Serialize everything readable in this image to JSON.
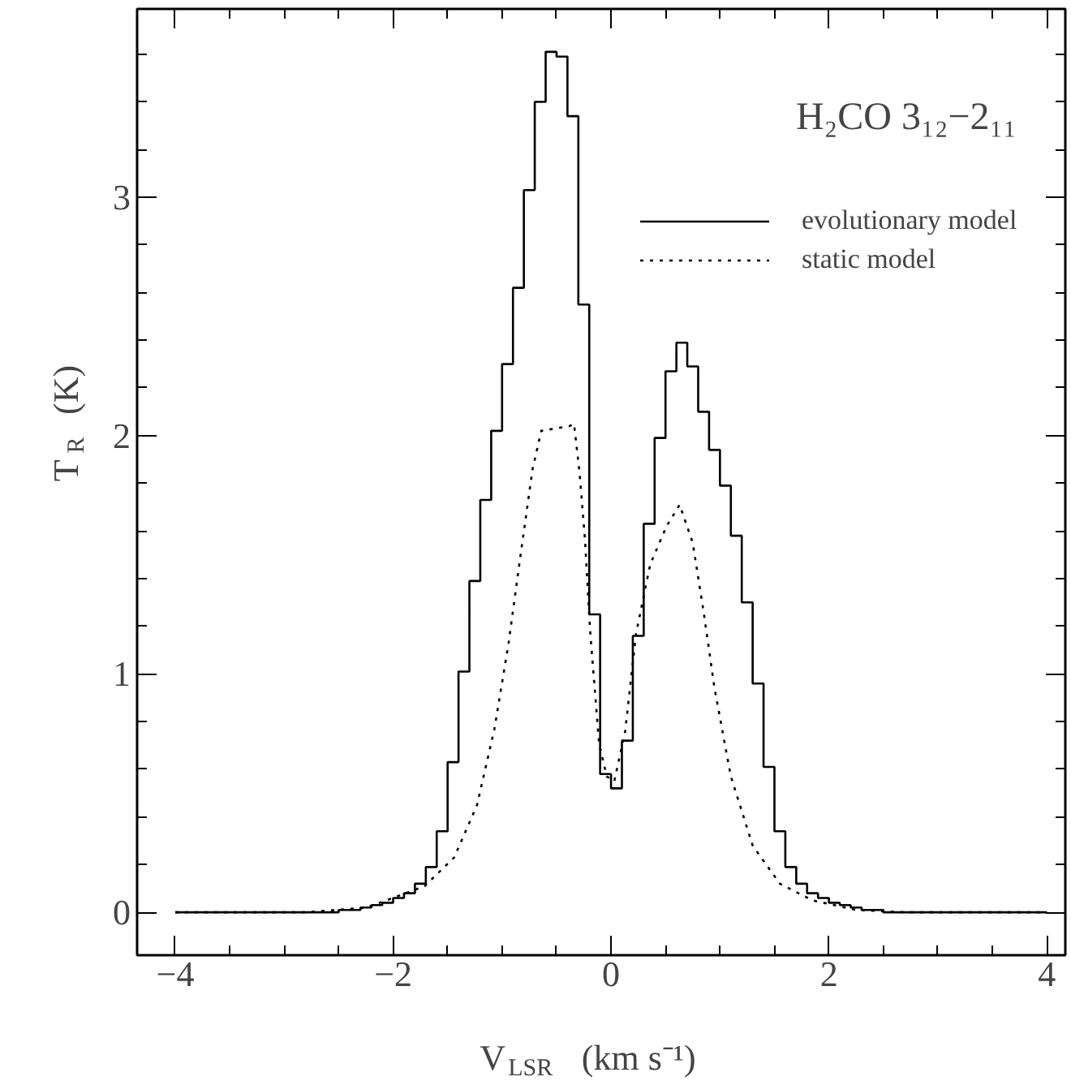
{
  "chart_data": {
    "type": "line",
    "title": "H₂CO 3₁₂−2₁₁",
    "xlabel": "V$_{LSR}$ (km s⁻¹)",
    "ylabel": "T$_{R}$ (K)",
    "xlim": [
      -4.35,
      4.17
    ],
    "ylim": [
      -0.18,
      3.79
    ],
    "xticks": [
      -4,
      {
        "value": -3.5,
        "label": null
      },
      {
        "value": -3,
        "label": null
      },
      {
        "value": -2.5,
        "label": null
      },
      -2,
      {
        "value": -1.5,
        "label": null
      },
      {
        "value": -1,
        "label": null
      },
      {
        "value": -0.5,
        "label": null
      },
      0,
      {
        "value": 0.5,
        "label": null
      },
      {
        "value": 1,
        "label": null
      },
      {
        "value": 1.5,
        "label": null
      },
      2,
      {
        "value": 2.5,
        "label": null
      },
      {
        "value": 3,
        "label": null
      },
      {
        "value": 3.5,
        "label": null
      },
      4
    ],
    "yticks": [
      0,
      {
        "value": 0.2,
        "label": null
      },
      {
        "value": 0.4,
        "label": null
      },
      {
        "value": 0.6,
        "label": null
      },
      {
        "value": 0.8,
        "label": null
      },
      1,
      {
        "value": 1.2,
        "label": null
      },
      {
        "value": 1.4,
        "label": null
      },
      {
        "value": 1.6,
        "label": null
      },
      {
        "value": 1.8,
        "label": null
      },
      2,
      {
        "value": 2.2,
        "label": null
      },
      {
        "value": 2.4,
        "label": null
      },
      {
        "value": 2.6,
        "label": null
      },
      {
        "value": 2.8,
        "label": null
      },
      3,
      {
        "value": 3.2,
        "label": null
      },
      {
        "value": 3.4,
        "label": null
      },
      {
        "value": 3.6,
        "label": null
      }
    ],
    "grid": false,
    "legend": "top right",
    "series": [
      {
        "name": "evolutionary model",
        "type": "step",
        "color": "#000000",
        "line_style": "solid",
        "x": [
          -4.0,
          -2.5,
          -2.4,
          -2.3,
          -2.2,
          -2.1,
          -2.0,
          -1.9,
          -1.8,
          -1.7,
          -1.6,
          -1.5,
          -1.4,
          -1.3,
          -1.2,
          -1.1,
          -1.0,
          -0.9,
          -0.8,
          -0.7,
          -0.6,
          -0.5,
          -0.4,
          -0.3,
          -0.2,
          -0.1,
          0.0,
          0.1,
          0.2,
          0.3,
          0.4,
          0.5,
          0.6,
          0.7,
          0.8,
          0.9,
          1.0,
          1.1,
          1.2,
          1.3,
          1.4,
          1.5,
          1.6,
          1.7,
          1.8,
          1.9,
          2.0,
          2.1,
          2.2,
          2.3,
          2.4,
          2.5,
          4.0
        ],
        "values": [
          0,
          0.01,
          0.01,
          0.02,
          0.03,
          0.04,
          0.06,
          0.08,
          0.12,
          0.19,
          0.34,
          0.63,
          1.01,
          1.39,
          1.73,
          2.02,
          2.3,
          2.62,
          3.03,
          3.4,
          3.61,
          3.59,
          3.34,
          2.55,
          1.25,
          0.58,
          0.52,
          0.72,
          1.16,
          1.63,
          1.99,
          2.27,
          2.39,
          2.29,
          2.1,
          1.94,
          1.79,
          1.58,
          1.3,
          0.96,
          0.61,
          0.34,
          0.19,
          0.12,
          0.08,
          0.06,
          0.04,
          0.03,
          0.02,
          0.01,
          0.01,
          0,
          0
        ]
      },
      {
        "name": "static model",
        "color": "#000000",
        "line_style": "dotted",
        "x": [
          -4.0,
          -2.8,
          -2.24,
          -1.71,
          -1.44,
          -1.23,
          -1.07,
          -0.94,
          -0.83,
          -0.72,
          -0.64,
          -0.38,
          -0.34,
          -0.29,
          -0.24,
          -0.19,
          -0.11,
          -0.04,
          0.03,
          0.13,
          0.23,
          0.36,
          0.51,
          0.63,
          0.75,
          0.85,
          0.95,
          1.1,
          1.3,
          1.55,
          1.85,
          2.25,
          2.7,
          4.0
        ],
        "values": [
          0,
          0,
          0.02,
          0.11,
          0.23,
          0.45,
          0.77,
          1.13,
          1.5,
          1.86,
          2.02,
          2.04,
          2.05,
          1.85,
          1.57,
          1.17,
          0.71,
          0.57,
          0.55,
          0.76,
          1.17,
          1.46,
          1.62,
          1.71,
          1.55,
          1.26,
          0.94,
          0.57,
          0.28,
          0.12,
          0.05,
          0.01,
          0,
          0
        ]
      }
    ]
  }
}
